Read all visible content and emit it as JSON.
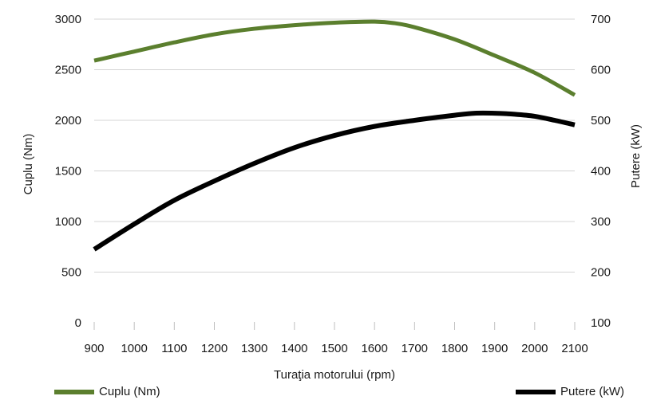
{
  "chart_data": {
    "type": "line",
    "xlabel": "Turaţia motorului (rpm)",
    "ylabel_left": "Cuplu (Nm)",
    "ylabel_right": "Putere (kW)",
    "x_ticks": [
      "900",
      "1000",
      "1100",
      "1200",
      "1300",
      "1400",
      "1500",
      "1600",
      "1700",
      "1800",
      "1900",
      "2000",
      "2100"
    ],
    "y_left_ticks": [
      "0",
      "500",
      "1000",
      "1500",
      "2000",
      "2500",
      "3000"
    ],
    "y_right_ticks": [
      "100",
      "200",
      "300",
      "400",
      "500",
      "600",
      "700"
    ],
    "xlim": [
      900,
      2100
    ],
    "ylim_left": [
      0,
      3000
    ],
    "ylim_right": [
      100,
      700
    ],
    "grid": "horizontal",
    "legend_position": "bottom",
    "series": [
      {
        "name": "Cuplu (Nm)",
        "axis": "left",
        "color": "#5b7f2e",
        "x": [
          900,
          1000,
          1100,
          1200,
          1300,
          1400,
          1500,
          1600,
          1650,
          1700,
          1800,
          1900,
          2000,
          2100
        ],
        "y": [
          2590,
          2680,
          2770,
          2850,
          2905,
          2940,
          2965,
          2975,
          2960,
          2920,
          2800,
          2640,
          2470,
          2250
        ]
      },
      {
        "name": "Putere (kW)",
        "axis": "right",
        "color": "#000000",
        "x": [
          900,
          1000,
          1100,
          1200,
          1300,
          1400,
          1500,
          1600,
          1700,
          1800,
          1850,
          1900,
          1950,
          2000,
          2050,
          2100
        ],
        "y": [
          245,
          295,
          342,
          380,
          415,
          446,
          470,
          488,
          500,
          510,
          514,
          514,
          512,
          508,
          500,
          491
        ]
      }
    ]
  }
}
